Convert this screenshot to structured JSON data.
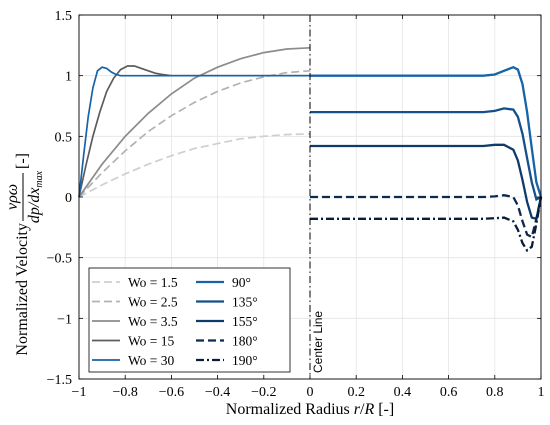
{
  "chart_data": {
    "type": "line",
    "xlabel": "Normalized Radius r/R  [-]",
    "ylabel": "Normalized Velocity",
    "ylabel_fraction": {
      "numerator": "vρω",
      "denominator": "dp/dx",
      "denominator_sub": "max"
    },
    "ylabel_unit": "[-]",
    "xlim": [
      -1,
      1
    ],
    "ylim": [
      -1.5,
      1.5
    ],
    "xticks": [
      "-1",
      "-0.8",
      "-0.6",
      "-0.4",
      "-0.2",
      "0",
      "0.2",
      "0.4",
      "0.6",
      "0.8",
      "1"
    ],
    "yticks": [
      "-1.5",
      "-1",
      "-0.5",
      "0",
      "0.5",
      "1",
      "1.5"
    ],
    "grid": true,
    "center_line": {
      "x": 0,
      "label": "Center Line"
    },
    "legend_position": "bottom-left",
    "series_left": [
      {
        "name": "Wo = 1.5",
        "color": "#cfcfcf",
        "style": "dashed",
        "x": [
          -1,
          -0.9,
          -0.8,
          -0.7,
          -0.6,
          -0.5,
          -0.4,
          -0.3,
          -0.2,
          -0.1,
          0
        ],
        "y": [
          0,
          0.1,
          0.19,
          0.27,
          0.34,
          0.4,
          0.44,
          0.48,
          0.5,
          0.515,
          0.52
        ]
      },
      {
        "name": "Wo = 2.5",
        "color": "#b2b2b2",
        "style": "dashed",
        "x": [
          -1,
          -0.9,
          -0.8,
          -0.7,
          -0.6,
          -0.5,
          -0.4,
          -0.3,
          -0.2,
          -0.1,
          0
        ],
        "y": [
          0,
          0.2,
          0.38,
          0.54,
          0.67,
          0.78,
          0.87,
          0.94,
          0.99,
          1.025,
          1.04
        ]
      },
      {
        "name": "Wo = 3.5",
        "color": "#8c8c8c",
        "style": "solid",
        "x": [
          -1,
          -0.9,
          -0.8,
          -0.7,
          -0.6,
          -0.5,
          -0.4,
          -0.3,
          -0.2,
          -0.1,
          0
        ],
        "y": [
          0,
          0.27,
          0.5,
          0.69,
          0.85,
          0.98,
          1.07,
          1.14,
          1.19,
          1.22,
          1.23
        ]
      },
      {
        "name": "Wo = 15",
        "color": "#5c5c5c",
        "style": "solid",
        "x": [
          -1,
          -0.97,
          -0.94,
          -0.91,
          -0.88,
          -0.85,
          -0.82,
          -0.79,
          -0.76,
          -0.73,
          -0.7,
          -0.67,
          -0.64,
          -0.6,
          -0.5,
          -0.3,
          0
        ],
        "y": [
          0,
          0.26,
          0.5,
          0.7,
          0.87,
          0.98,
          1.05,
          1.08,
          1.08,
          1.06,
          1.04,
          1.02,
          1.01,
          1.0,
          1.0,
          1.0,
          1.0
        ]
      },
      {
        "name": "Wo = 30",
        "color": "#1763a8",
        "style": "solid",
        "x": [
          -1,
          -0.98,
          -0.96,
          -0.94,
          -0.92,
          -0.9,
          -0.88,
          -0.86,
          -0.84,
          -0.82,
          -0.8,
          -0.75,
          -0.6,
          -0.3,
          0
        ],
        "y": [
          0,
          0.34,
          0.66,
          0.9,
          1.04,
          1.07,
          1.06,
          1.03,
          1.01,
          1.0,
          1.0,
          1.0,
          1.0,
          1.0,
          1.0
        ]
      }
    ],
    "series_right": [
      {
        "name": "90°",
        "color": "#1763a8",
        "style": "solid",
        "x": [
          0,
          0.5,
          0.75,
          0.8,
          0.84,
          0.88,
          0.9,
          0.92,
          0.94,
          0.96,
          0.98,
          1
        ],
        "y": [
          1.0,
          1.0,
          1.0,
          1.01,
          1.04,
          1.07,
          1.05,
          0.93,
          0.7,
          0.4,
          0.12,
          0
        ]
      },
      {
        "name": "135°",
        "color": "#154f8c",
        "style": "solid",
        "x": [
          0,
          0.5,
          0.75,
          0.8,
          0.84,
          0.88,
          0.9,
          0.92,
          0.94,
          0.96,
          0.98,
          1
        ],
        "y": [
          0.7,
          0.7,
          0.7,
          0.71,
          0.73,
          0.72,
          0.66,
          0.52,
          0.32,
          0.12,
          -0.02,
          0
        ]
      },
      {
        "name": "155°",
        "color": "#0f3b6b",
        "style": "solid",
        "x": [
          0,
          0.5,
          0.75,
          0.8,
          0.84,
          0.88,
          0.9,
          0.92,
          0.94,
          0.96,
          0.98,
          1
        ],
        "y": [
          0.42,
          0.42,
          0.42,
          0.43,
          0.43,
          0.39,
          0.3,
          0.14,
          -0.04,
          -0.17,
          -0.18,
          0
        ]
      },
      {
        "name": "180°",
        "color": "#0b2a4f",
        "style": "dashed",
        "x": [
          0,
          0.5,
          0.75,
          0.8,
          0.84,
          0.88,
          0.9,
          0.92,
          0.94,
          0.96,
          0.98,
          1
        ],
        "y": [
          0.0,
          0.0,
          0.0,
          0.005,
          0.015,
          0.0,
          -0.07,
          -0.2,
          -0.31,
          -0.33,
          -0.18,
          0
        ]
      },
      {
        "name": "190°",
        "color": "#081d38",
        "style": "dashdot",
        "x": [
          0,
          0.5,
          0.75,
          0.8,
          0.84,
          0.88,
          0.9,
          0.92,
          0.94,
          0.96,
          0.98,
          1
        ],
        "y": [
          -0.18,
          -0.18,
          -0.18,
          -0.175,
          -0.17,
          -0.2,
          -0.27,
          -0.38,
          -0.44,
          -0.41,
          -0.22,
          0
        ]
      }
    ]
  }
}
